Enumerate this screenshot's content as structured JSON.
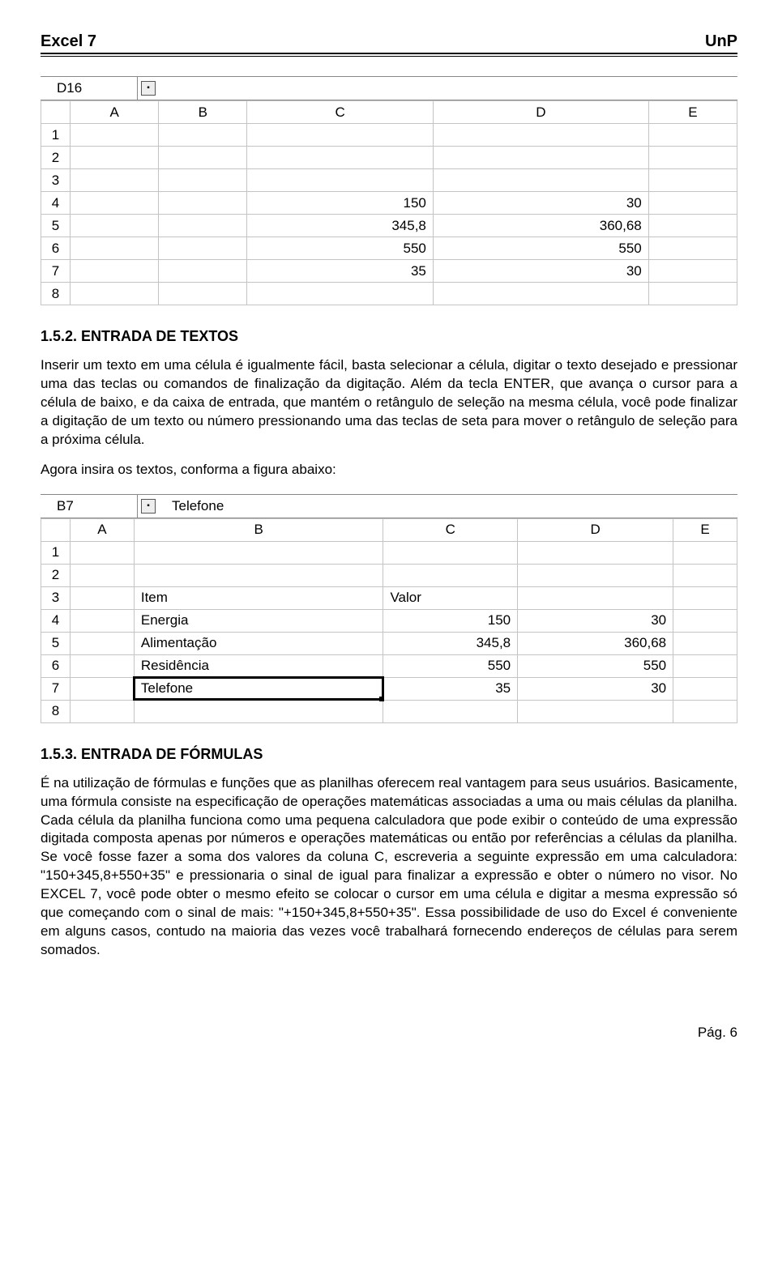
{
  "header": {
    "left": "Excel 7",
    "right": "UnP"
  },
  "fig1": {
    "namebox": "D16",
    "formula": "",
    "columns": [
      "A",
      "B",
      "C",
      "D",
      "E"
    ],
    "row_numbers": [
      "1",
      "2",
      "3",
      "4",
      "5",
      "6",
      "7",
      "8"
    ],
    "cells": {
      "C4": "150",
      "D4": "30",
      "C5": "345,8",
      "D5": "360,68",
      "C6": "550",
      "D6": "550",
      "C7": "35",
      "D7": "30"
    }
  },
  "sec1": {
    "heading": "1.5.2.  ENTRADA DE TEXTOS",
    "p1": "Inserir um texto em uma célula é igualmente fácil, basta selecionar a célula, digitar o texto desejado e pressionar uma das teclas ou comandos de finalização da digitação. Além da tecla ENTER, que avança o cursor para a célula de baixo, e da caixa de entrada, que mantém o retângulo de seleção na mesma célula, você pode finalizar a digitação de um texto ou número pressionando uma das teclas de seta para mover o retângulo de seleção para a próxima célula.",
    "p2": "Agora insira os textos, conforma a figura abaixo:"
  },
  "fig2": {
    "namebox": "B7",
    "formula": "Telefone",
    "columns": [
      "A",
      "B",
      "C",
      "D",
      "E"
    ],
    "row_numbers": [
      "1",
      "2",
      "3",
      "4",
      "5",
      "6",
      "7",
      "8"
    ],
    "cells": {
      "B3": "Item",
      "C3": "Valor",
      "B4": "Energia",
      "C4": "150",
      "D4": "30",
      "B5": "Alimentação",
      "C5": "345,8",
      "D5": "360,68",
      "B6": "Residência",
      "C6": "550",
      "D6": "550",
      "B7": "Telefone",
      "C7": "35",
      "D7": "30"
    },
    "active_cell": "B7"
  },
  "sec2": {
    "heading": "1.5.3.  ENTRADA DE FÓRMULAS",
    "p1": "É na utilização de fórmulas e funções que as planilhas oferecem real vantagem para seus usuários.  Basicamente, uma fórmula consiste na especificação de operações matemáticas associadas a uma ou mais células da planilha.  Cada célula da planilha funciona como uma pequena calculadora que pode exibir o conteúdo de uma expressão digitada composta apenas por números e operações matemáticas ou então por referências a células da planilha.  Se você fosse fazer a soma dos valores  da coluna C, escreveria a seguinte expressão em uma calculadora: \"150+345,8+550+35\" e pressionaria o sinal de igual para finalizar a expressão e obter o número no visor.  No EXCEL 7, você pode obter o mesmo efeito se colocar o cursor em uma célula e digitar a mesma expressão só que começando com o sinal de mais: \"+150+345,8+550+35\".  Essa possibilidade de uso do Excel é conveniente em alguns casos, contudo na maioria das vezes você trabalhará fornecendo endereços de células para serem somados."
  },
  "footer": {
    "text": "Pág. 6"
  }
}
